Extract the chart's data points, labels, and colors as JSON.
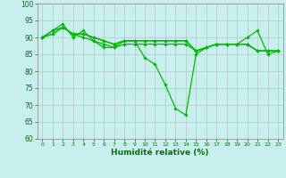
{
  "xlabel": "Humidité relative (%)",
  "bg_color": "#c8eeed",
  "grid_color": "#b0c8c8",
  "line_color": "#00bb00",
  "xlim": [
    -0.5,
    23.5
  ],
  "ylim": [
    60,
    100
  ],
  "yticks": [
    60,
    65,
    70,
    75,
    80,
    85,
    90,
    95,
    100
  ],
  "xticks": [
    0,
    1,
    2,
    3,
    4,
    5,
    6,
    7,
    8,
    9,
    10,
    11,
    12,
    13,
    14,
    15,
    16,
    17,
    18,
    19,
    20,
    21,
    22,
    23
  ],
  "series": [
    [
      90,
      92,
      94,
      90,
      92,
      89,
      87,
      87,
      89,
      89,
      84,
      82,
      76,
      69,
      67,
      85,
      87,
      88,
      88,
      88,
      90,
      92,
      85,
      86
    ],
    [
      90,
      91,
      93,
      91,
      90,
      89,
      88,
      87,
      88,
      88,
      88,
      88,
      88,
      88,
      88,
      86,
      87,
      88,
      88,
      88,
      88,
      86,
      86,
      86
    ],
    [
      90,
      91,
      93,
      91,
      91,
      90,
      89,
      88,
      89,
      89,
      89,
      89,
      89,
      89,
      89,
      86,
      87,
      88,
      88,
      88,
      88,
      86,
      86,
      86
    ],
    [
      90,
      92,
      93,
      91,
      91,
      90,
      89,
      88,
      89,
      89,
      89,
      89,
      89,
      89,
      89,
      86,
      87,
      88,
      88,
      88,
      88,
      86,
      86,
      86
    ]
  ],
  "marker": "D",
  "markersize": 1.8,
  "linewidth": 0.9,
  "xlabel_fontsize": 6.5,
  "xlabel_color": "#007700",
  "tick_labelsize": 5.5,
  "tick_color": "#007700"
}
